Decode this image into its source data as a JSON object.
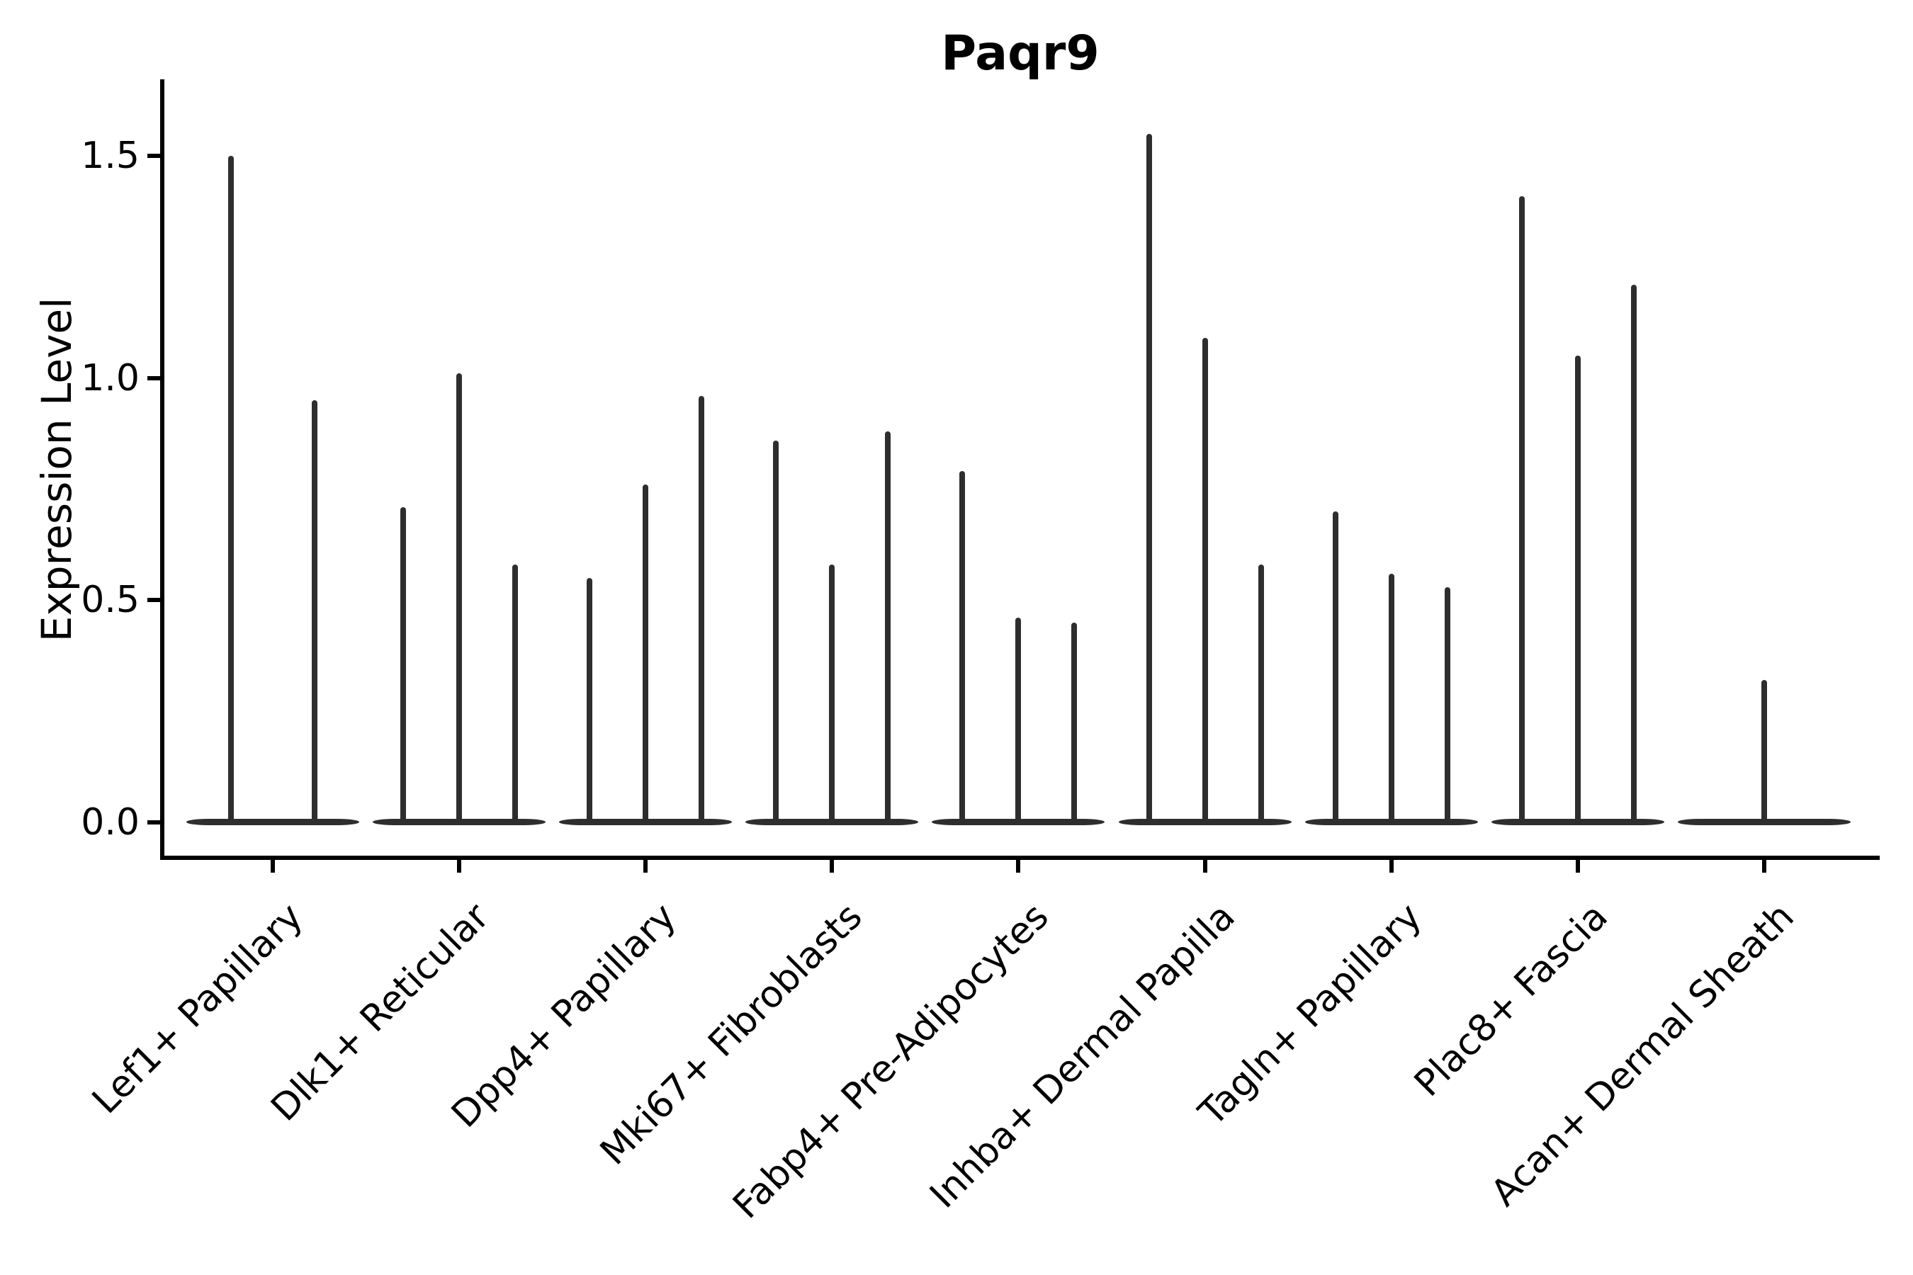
{
  "title": "Paqr9",
  "ylabel": "Expression Level",
  "chart_data": {
    "type": "violin",
    "title": "Paqr9",
    "xlabel": "",
    "ylabel": "Expression Level",
    "ylim": [
      -0.08,
      1.67
    ],
    "yticks": [
      {
        "value": 0.0,
        "label": "0.0"
      },
      {
        "value": 0.5,
        "label": "0.5"
      },
      {
        "value": 1.0,
        "label": "1.0"
      },
      {
        "value": 1.5,
        "label": "1.5"
      }
    ],
    "x_tick_rotation": 45,
    "grid": false,
    "legend": "none",
    "description": "Dodged violin plot; expression concentrated at 0 so each violin collapses to a flat base at 0 with a thin spike reaching its maximum expression value.",
    "categories": [
      "Lef1+ Papillary",
      "Dlk1+ Reticular",
      "Dpp4+ Papillary",
      "Mki67+ Fibroblasts",
      "Fabp4+ Pre-Adipocytes",
      "Inhba+ Dermal Papilla",
      "Tagln+ Papillary",
      "Plac8+ Fascia",
      "Acan+ Dermal Sheath"
    ],
    "groups": [
      {
        "label": "Lef1+ Papillary",
        "violin_max_values": [
          1.5,
          0.95
        ]
      },
      {
        "label": "Dlk1+ Reticular",
        "violin_max_values": [
          0.71,
          1.01,
          0.58
        ]
      },
      {
        "label": "Dpp4+ Papillary",
        "violin_max_values": [
          0.55,
          0.76,
          0.96
        ]
      },
      {
        "label": "Mki67+ Fibroblasts",
        "violin_max_values": [
          0.86,
          0.58,
          0.88
        ]
      },
      {
        "label": "Fabp4+ Pre-Adipocytes",
        "violin_max_values": [
          0.79,
          0.46,
          0.45
        ]
      },
      {
        "label": "Inhba+ Dermal Papilla",
        "violin_max_values": [
          1.55,
          1.09,
          0.58
        ]
      },
      {
        "label": "Tagln+ Papillary",
        "violin_max_values": [
          0.7,
          0.56,
          0.53
        ]
      },
      {
        "label": "Plac8+ Fascia",
        "violin_max_values": [
          1.41,
          1.05,
          1.21
        ]
      },
      {
        "label": "Acan+ Dermal Sheath",
        "violin_max_values": [
          0.32
        ]
      }
    ]
  },
  "style": {
    "violin_color": "#2e2e2e",
    "axis_color": "#000000",
    "text_color": "#000000",
    "background_color": "#ffffff"
  }
}
